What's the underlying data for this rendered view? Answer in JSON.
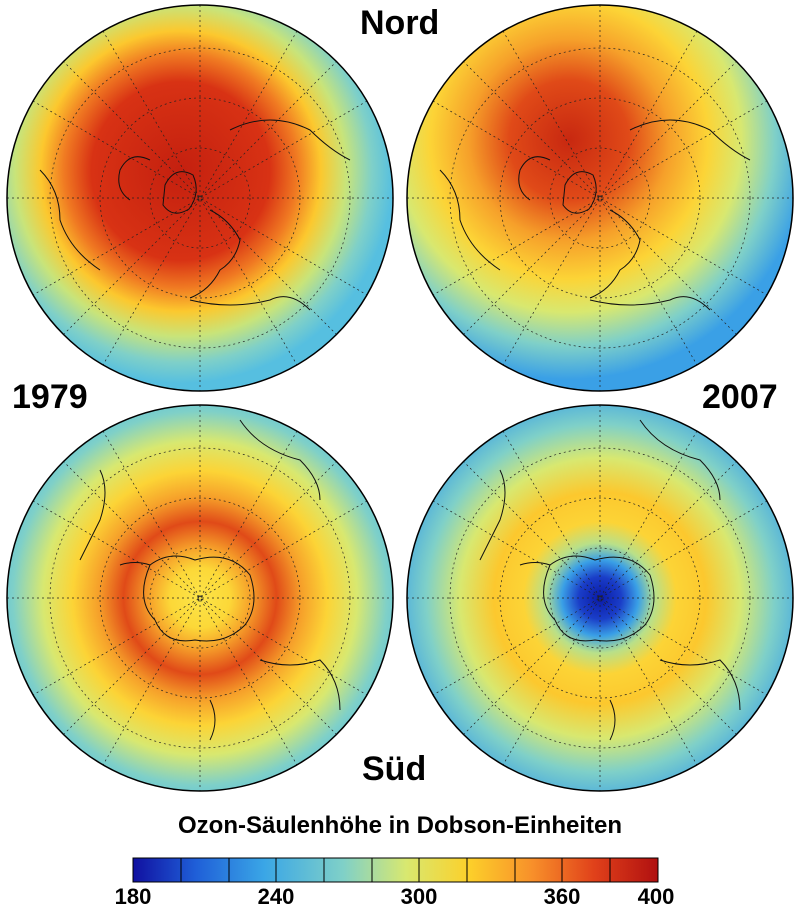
{
  "labels": {
    "north": "Nord",
    "south": "Süd",
    "year_left": "1979",
    "year_right": "2007"
  },
  "colorbar": {
    "title": "Ozon-Säulenhöhe in Dobson-Einheiten",
    "min": 180,
    "max": 400,
    "ticks": [
      "180",
      "240",
      "300",
      "360",
      "400"
    ],
    "colors": [
      "#1010a0",
      "#1f5fd8",
      "#3aa6e6",
      "#7fd0c8",
      "#d8e870",
      "#fcd02a",
      "#f8902a",
      "#e0401a",
      "#b01010"
    ]
  },
  "maps": [
    {
      "hemisphere": "Nord",
      "year": "1979"
    },
    {
      "hemisphere": "Nord",
      "year": "2007"
    },
    {
      "hemisphere": "Süd",
      "year": "1979"
    },
    {
      "hemisphere": "Süd",
      "year": "2007"
    }
  ]
}
